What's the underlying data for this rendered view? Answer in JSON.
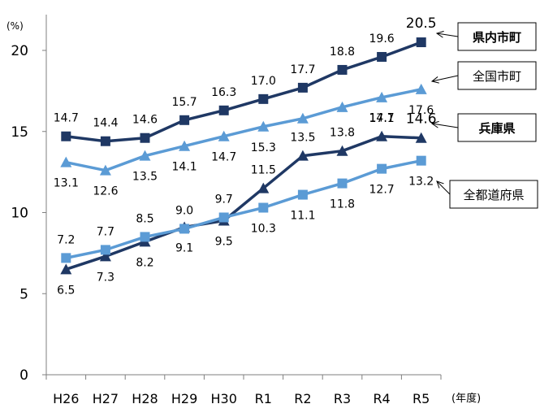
{
  "chart_data": {
    "type": "line",
    "ylabel": "(%)",
    "xunit": "(年度)",
    "ylim": [
      0,
      20
    ],
    "yticks": [
      0,
      5,
      10,
      15,
      20
    ],
    "categories": [
      "H26",
      "H27",
      "H28",
      "H29",
      "H30",
      "R1",
      "R2",
      "R3",
      "R4",
      "R5"
    ],
    "series": [
      {
        "name": "県内市町",
        "color": "#1f3864",
        "marker": "square",
        "values": [
          14.7,
          14.4,
          14.6,
          15.7,
          16.3,
          17.0,
          17.7,
          18.8,
          19.6,
          20.5
        ],
        "labels": [
          "14.7",
          "14.4",
          "14.6",
          "15.7",
          "16.3",
          "17.0",
          "17.7",
          "18.8",
          "19.6",
          "20.5"
        ]
      },
      {
        "name": "全国市町",
        "color": "#5b9bd5",
        "marker": "triangle",
        "values": [
          13.1,
          12.6,
          13.5,
          14.1,
          14.7,
          15.3,
          15.8,
          16.5,
          17.1,
          17.6
        ],
        "labels": [
          "13.1",
          "12.6",
          "13.5",
          "14.1",
          "14.7",
          "15.3",
          "",
          "",
          "17.1",
          "17.6"
        ]
      },
      {
        "name": "兵庫県",
        "color": "#1f3864",
        "marker": "triangle",
        "values": [
          6.5,
          7.3,
          8.2,
          9.1,
          9.5,
          11.5,
          13.5,
          13.8,
          14.7,
          14.6
        ],
        "labels": [
          "6.5",
          "7.3",
          "8.2",
          "9.1",
          "9.5",
          "11.5",
          "13.5",
          "13.8",
          "14.7",
          "14.6"
        ]
      },
      {
        "name": "全都道府県",
        "color": "#5b9bd5",
        "marker": "square",
        "values": [
          7.2,
          7.7,
          8.5,
          9.0,
          9.7,
          10.3,
          11.1,
          11.8,
          12.7,
          13.2
        ],
        "labels": [
          "7.2",
          "7.7",
          "8.5",
          "9.0",
          "9.7",
          "10.3",
          "11.1",
          "11.8",
          "12.7",
          "13.2"
        ]
      }
    ],
    "legend": [
      {
        "label": "県内市町",
        "bold": true
      },
      {
        "label": "全国市町",
        "bold": false
      },
      {
        "label": "兵庫県",
        "bold": true
      },
      {
        "label": "全都道府県",
        "bold": false
      }
    ]
  }
}
